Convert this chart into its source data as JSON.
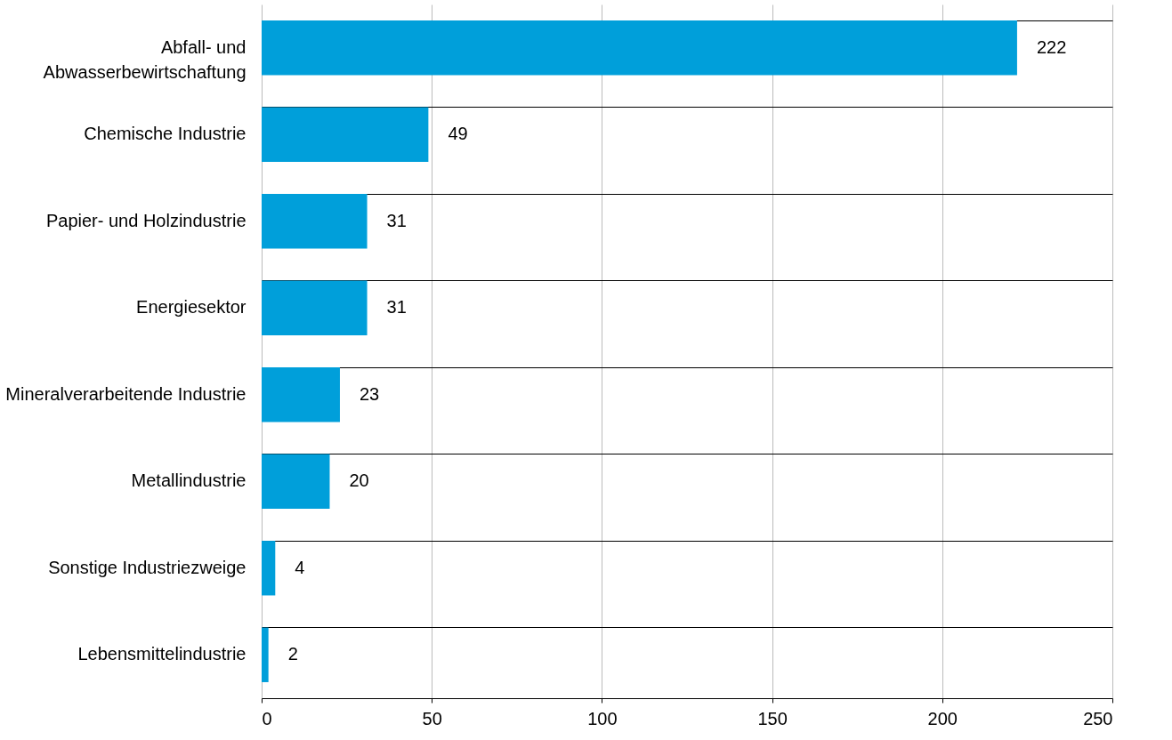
{
  "chart_data": {
    "type": "bar",
    "orientation": "horizontal",
    "categories": [
      "Abfall- und\nAbwasserbewirtschaftung",
      "Chemische Industrie",
      "Papier- und Holzindustrie",
      "Energiesektor",
      "Mineralverarbeitende Industrie",
      "Metallindustrie",
      "Sonstige Industriezweige",
      "Lebensmittelindustrie"
    ],
    "values": [
      222,
      49,
      31,
      31,
      23,
      20,
      4,
      2
    ],
    "color": "#009fda",
    "xlim": [
      0,
      250
    ],
    "xticks": [
      0,
      50,
      100,
      150,
      200,
      250
    ],
    "grid": "x",
    "data_labels": true
  }
}
